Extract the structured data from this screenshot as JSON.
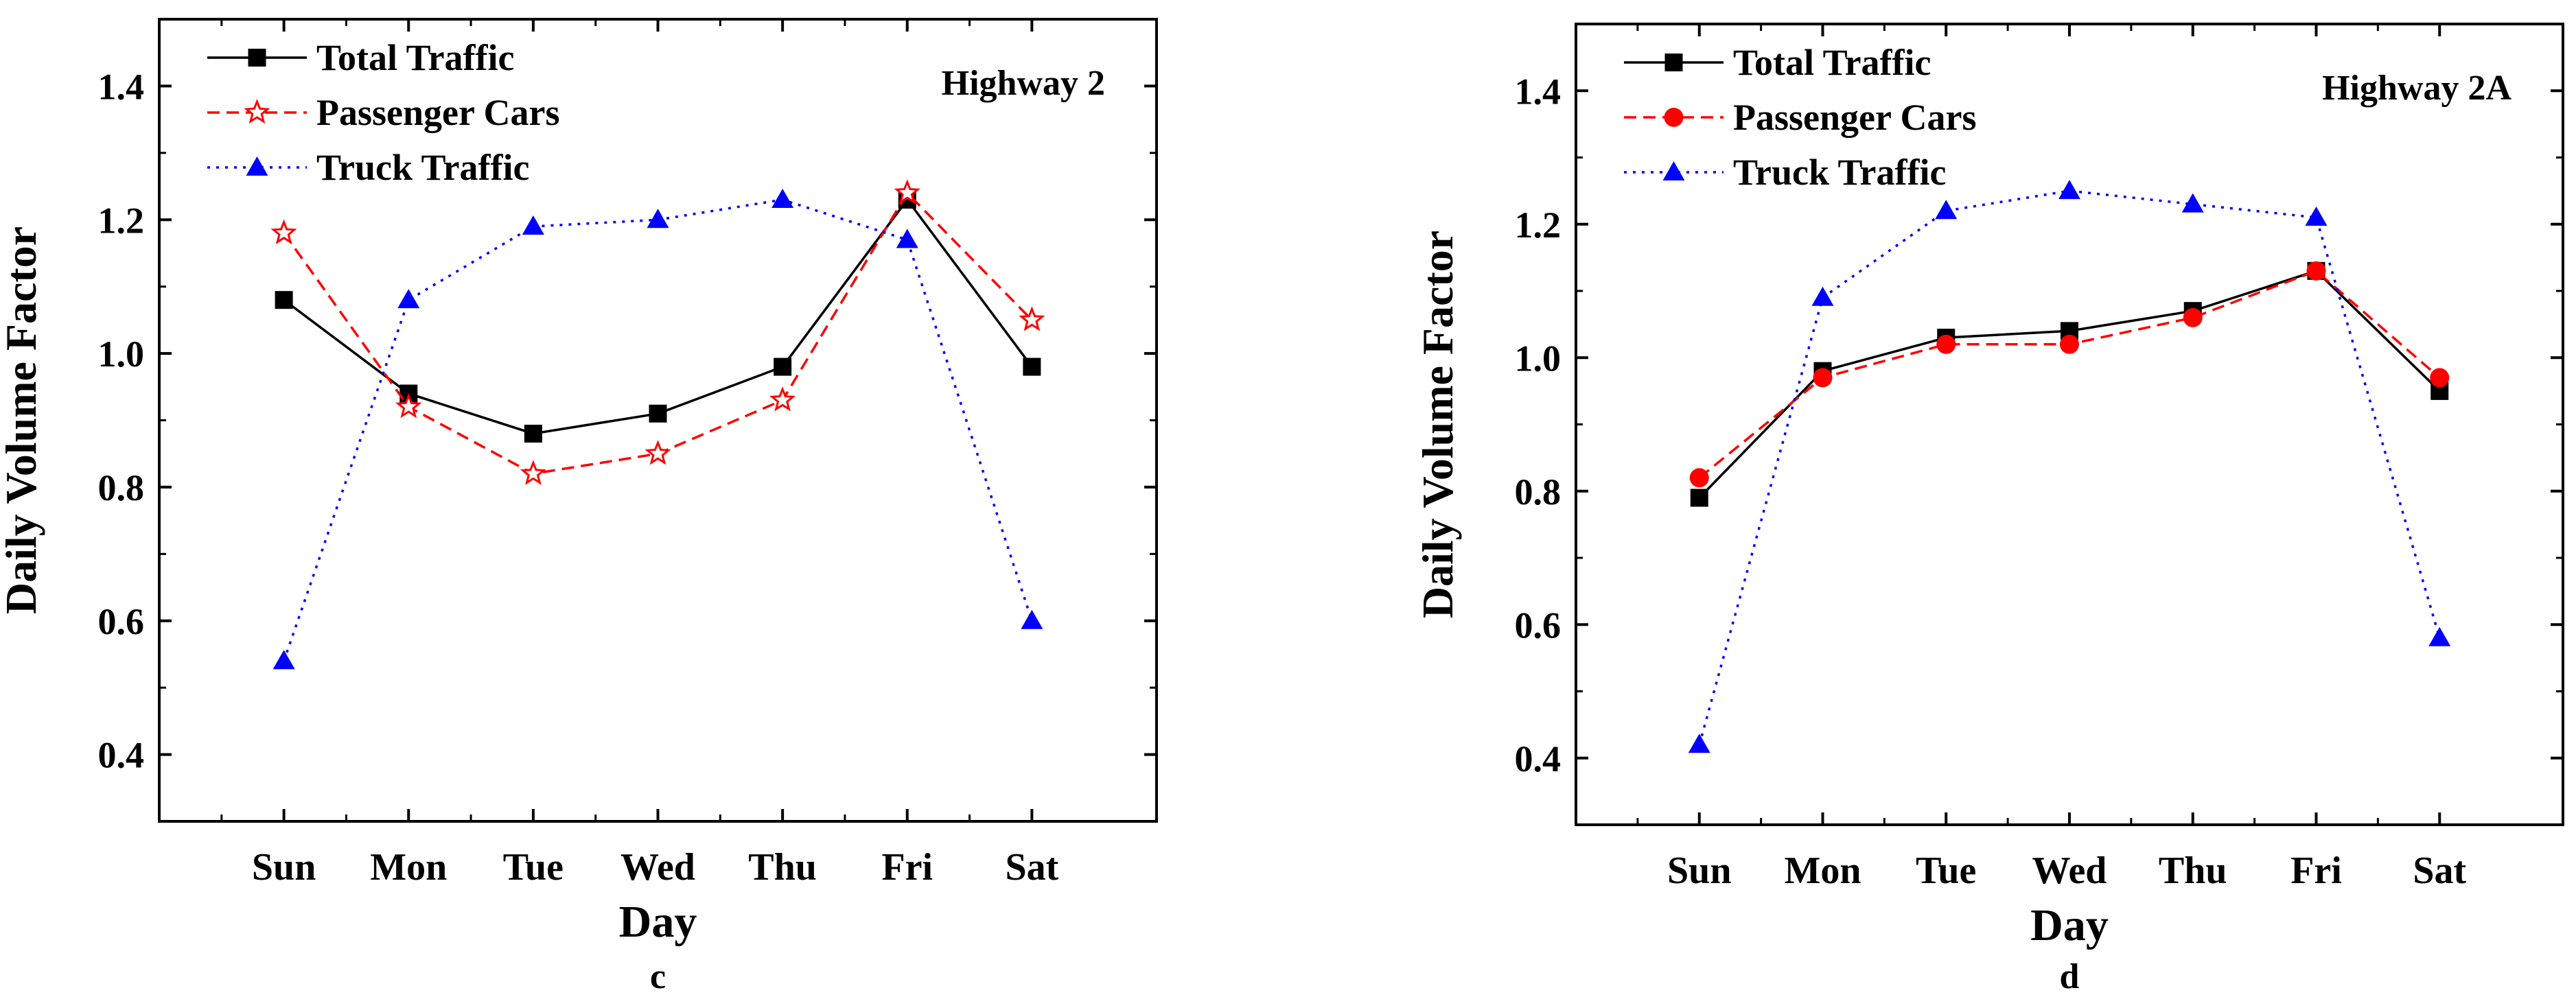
{
  "chart_data": [
    {
      "type": "line",
      "title": "Highway 2",
      "panel_label": "c",
      "xlabel": "Day",
      "ylabel": "Daily Volume Factor",
      "categories": [
        "Sun",
        "Mon",
        "Tue",
        "Wed",
        "Thu",
        "Fri",
        "Sat"
      ],
      "ylim": [
        0.3,
        1.5
      ],
      "yticks": [
        0.4,
        0.6,
        0.8,
        1.0,
        1.2,
        1.4
      ],
      "ytick_labels": [
        "0.4",
        "0.6",
        "0.8",
        "1.0",
        "1.2",
        "1.4"
      ],
      "legend_position": "top-left",
      "series": [
        {
          "name": "Total Traffic",
          "color": "#000000",
          "line": "solid",
          "marker": "square",
          "values": [
            1.08,
            0.94,
            0.88,
            0.91,
            0.98,
            1.23,
            0.98
          ]
        },
        {
          "name": "Passenger Cars",
          "color": "#ff0000",
          "line": "dashed",
          "marker": "star-open",
          "values": [
            1.18,
            0.92,
            0.82,
            0.85,
            0.93,
            1.24,
            1.05
          ]
        },
        {
          "name": "Truck Traffic",
          "color": "#0000ff",
          "line": "dotted",
          "marker": "triangle",
          "values": [
            0.54,
            1.08,
            1.19,
            1.2,
            1.23,
            1.17,
            0.6
          ]
        }
      ]
    },
    {
      "type": "line",
      "title": "Highway 2A",
      "panel_label": "d",
      "xlabel": "Day",
      "ylabel": "Daily Volume Factor",
      "categories": [
        "Sun",
        "Mon",
        "Tue",
        "Wed",
        "Thu",
        "Fri",
        "Sat"
      ],
      "ylim": [
        0.3,
        1.5
      ],
      "yticks": [
        0.4,
        0.6,
        0.8,
        1.0,
        1.2,
        1.4
      ],
      "ytick_labels": [
        "0.4",
        "0.6",
        "0.8",
        "1.0",
        "1.2",
        "1.4"
      ],
      "legend_position": "top-left",
      "series": [
        {
          "name": "Total Traffic",
          "color": "#000000",
          "line": "solid",
          "marker": "square",
          "values": [
            0.79,
            0.98,
            1.03,
            1.04,
            1.07,
            1.13,
            0.95
          ]
        },
        {
          "name": "Passenger Cars",
          "color": "#ff0000",
          "line": "dashed",
          "marker": "circle",
          "values": [
            0.82,
            0.97,
            1.02,
            1.02,
            1.06,
            1.13,
            0.97
          ]
        },
        {
          "name": "Truck Traffic",
          "color": "#0000ff",
          "line": "dotted",
          "marker": "triangle",
          "values": [
            0.42,
            1.09,
            1.22,
            1.25,
            1.23,
            1.21,
            0.58
          ]
        }
      ]
    }
  ]
}
